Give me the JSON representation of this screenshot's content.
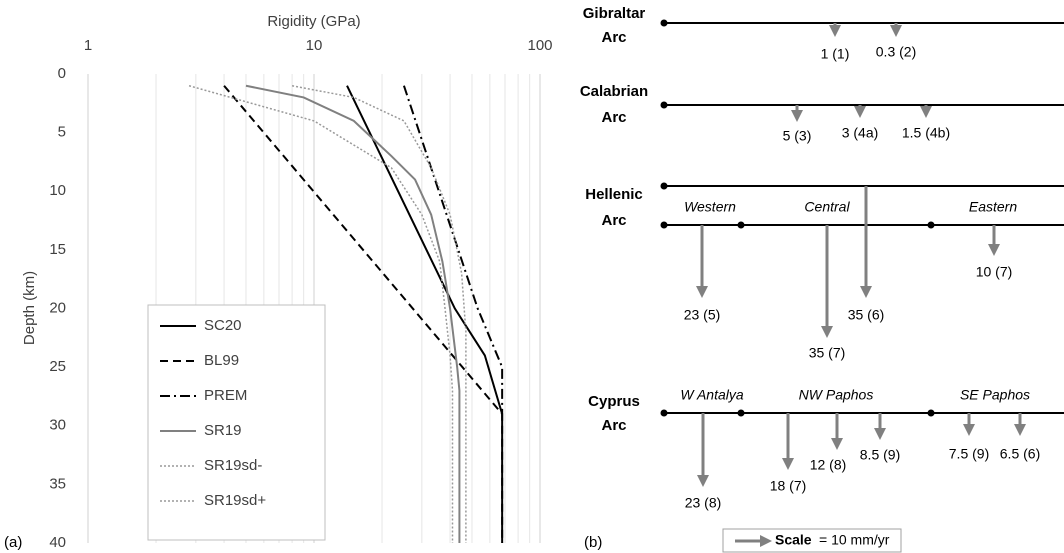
{
  "chart_data": {
    "type": "line",
    "panel_label": "(a)",
    "x_label": "Rigidity (GPa)",
    "y_label": "Depth (km)",
    "xscale": "log",
    "xlim": [
      1,
      100
    ],
    "xticks": [
      1,
      10,
      100
    ],
    "ylim": [
      0,
      40
    ],
    "yticks": [
      0,
      5,
      10,
      15,
      20,
      25,
      30,
      35,
      40
    ],
    "y_inverted": true,
    "grid": true,
    "legend": "lower left",
    "series": [
      {
        "name": "SC20",
        "color": "#000000",
        "style": "solid",
        "x": [
          14,
          42,
          57,
          68,
          68
        ],
        "values": [
          1,
          20,
          24,
          29,
          40
        ]
      },
      {
        "name": "BL99",
        "color": "#000000",
        "style": "dashed",
        "x": [
          4,
          68,
          68
        ],
        "values": [
          1,
          29,
          40
        ]
      },
      {
        "name": "PREM",
        "color": "#000000",
        "style": "dashdot",
        "x": [
          25,
          53,
          68,
          68
        ],
        "values": [
          1,
          20,
          25,
          29
        ]
      },
      {
        "name": "SR19",
        "color": "#808080",
        "style": "solid",
        "x": [
          5,
          9,
          15,
          22,
          28,
          33,
          37,
          40,
          43,
          44,
          44
        ],
        "values": [
          1,
          2,
          4,
          7,
          9,
          12,
          16,
          20,
          25,
          27,
          40
        ]
      },
      {
        "name": "SR19sd-",
        "color": "#999999",
        "style": "dotted",
        "x": [
          2.8,
          10,
          22,
          30,
          36,
          38,
          40,
          41,
          41
        ],
        "values": [
          1,
          4,
          8,
          12,
          16,
          20,
          24,
          27,
          40
        ]
      },
      {
        "name": "SR19sd+",
        "color": "#999999",
        "style": "dotted",
        "x": [
          8,
          15,
          25,
          33,
          40,
          45,
          47,
          47
        ],
        "values": [
          1,
          2,
          4,
          8,
          12,
          17,
          22,
          40
        ]
      }
    ]
  },
  "diagram": {
    "panel_label": "(b)",
    "arcs": [
      {
        "name": [
          "Gibraltar",
          "Arc"
        ],
        "segments": [],
        "rates": [
          "1 (1)",
          "0.3 (2)"
        ]
      },
      {
        "name": [
          "Calabrian",
          "Arc"
        ],
        "segments": [],
        "rates": [
          "5 (3)",
          "3 (4a)",
          "1.5 (4b)"
        ]
      },
      {
        "name": [
          "Hellenic",
          "Arc"
        ],
        "segments": [
          "Western",
          "Central",
          "Eastern"
        ],
        "rates": [
          "23 (5)",
          "35 (7)",
          "35 (6)",
          "10 (7)"
        ]
      },
      {
        "name": [
          "Cyprus",
          "Arc"
        ],
        "segments": [
          "W Antalya",
          "NW Paphos",
          "SE Paphos"
        ],
        "rates": [
          "23 (8)",
          "18 (7)",
          "12 (8)",
          "8.5 (9)",
          "7.5 (9)",
          "6.5 (6)"
        ]
      }
    ],
    "scale": {
      "label": "Scale",
      "text": "= 10 mm/yr"
    }
  }
}
